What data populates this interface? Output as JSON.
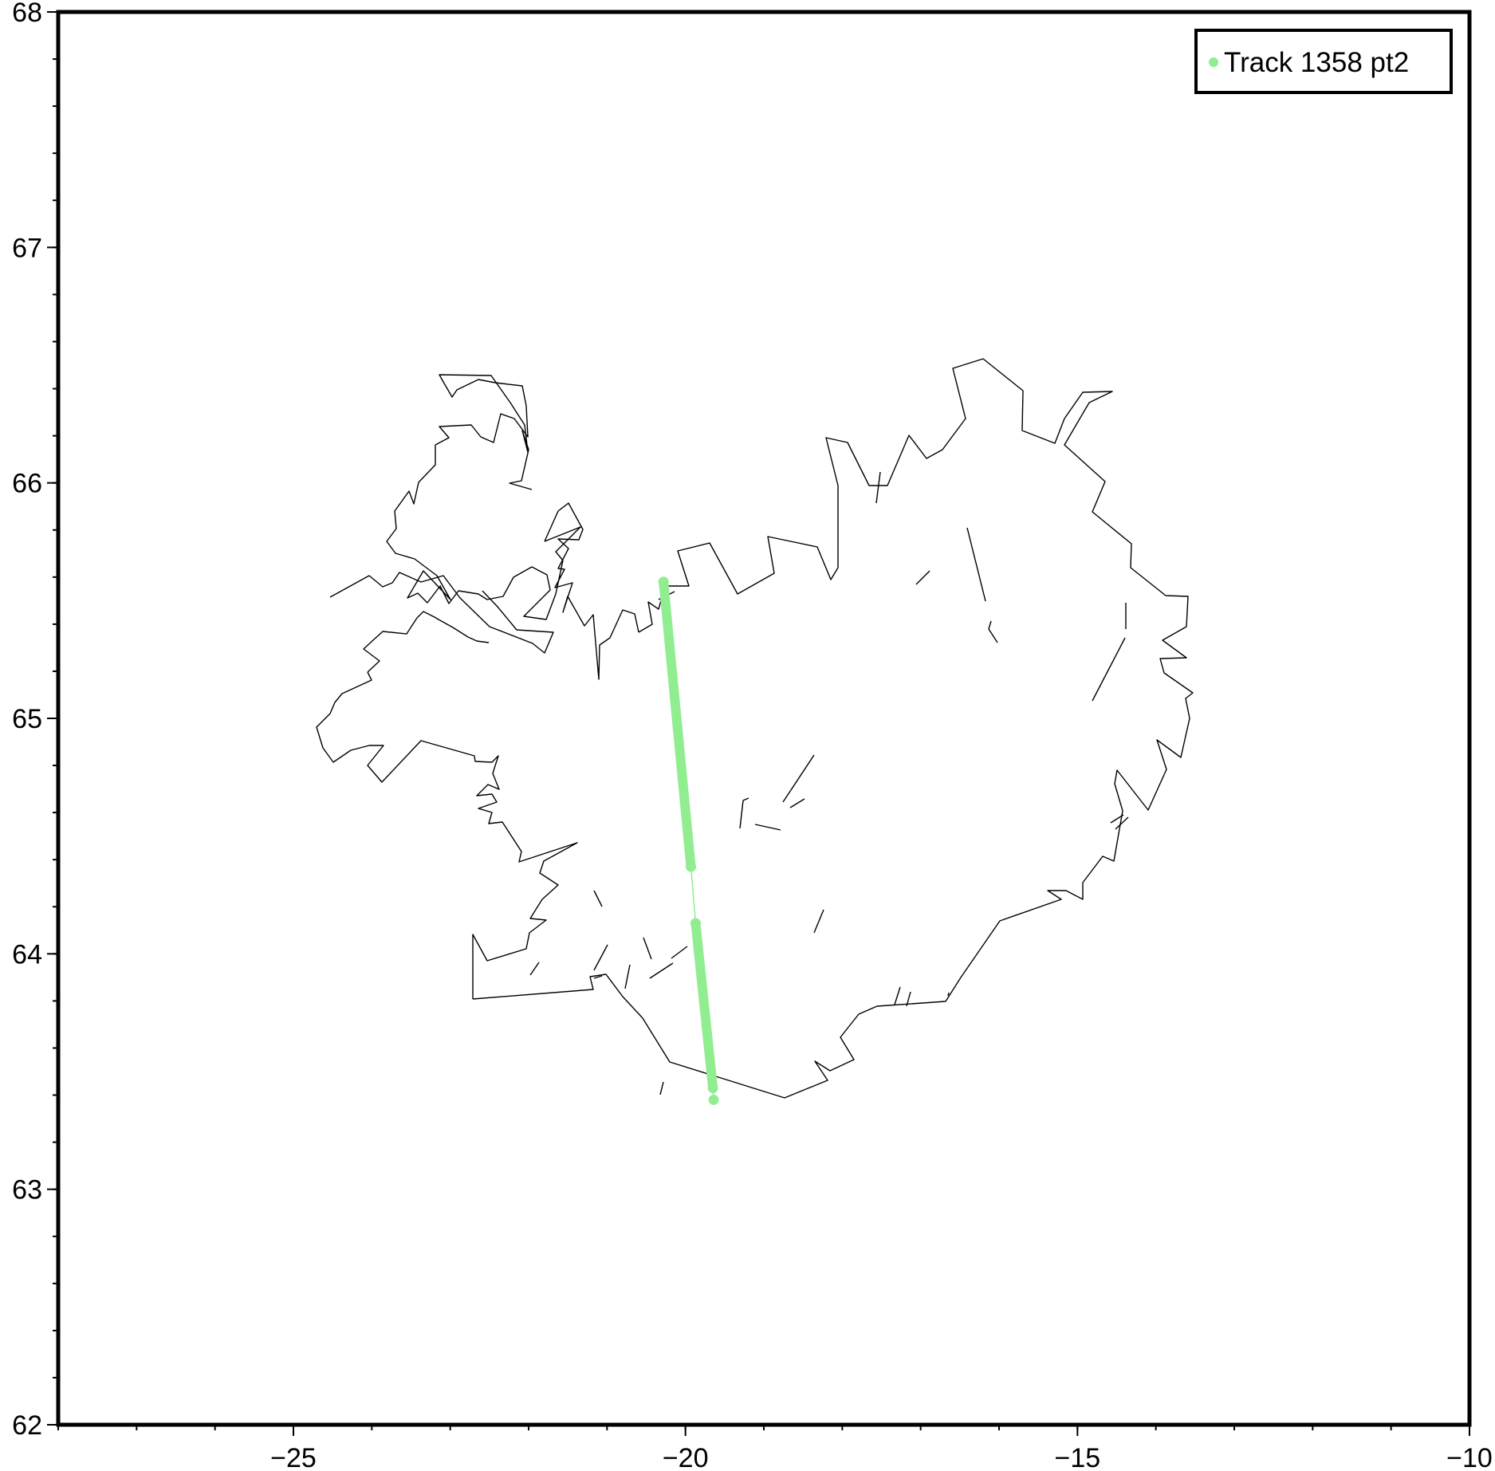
{
  "map": {
    "projection": "linear lon/lat",
    "x_axis": {
      "range": [
        -28,
        -10
      ],
      "major_ticks": [
        -25,
        -20,
        -15,
        -10
      ],
      "tick_labels": [
        "−25",
        "−20",
        "−15",
        "−10"
      ],
      "minor_step": 1
    },
    "y_axis": {
      "range": [
        62,
        68
      ],
      "major_ticks": [
        62,
        63,
        64,
        65,
        66,
        67,
        68
      ],
      "tick_labels": [
        "62",
        "63",
        "64",
        "65",
        "66",
        "67",
        "68"
      ],
      "minor_step": 0.2
    },
    "grid": false,
    "coastline_color": "#000000",
    "background_color": "#ffffff"
  },
  "legend": {
    "position": "top-right",
    "entries": [
      {
        "label": "Track 1358 pt2",
        "color": "#90ee90",
        "symbol": "circle"
      }
    ]
  },
  "chart_data": {
    "type": "scatter",
    "title": "",
    "xlabel": "",
    "ylabel": "",
    "xlim": [
      -28,
      -10
    ],
    "ylim": [
      62,
      68
    ],
    "grid": false,
    "legend_position": "top-right",
    "series": [
      {
        "name": "Track 1358 pt2",
        "color": "#90ee90",
        "segments": [
          {
            "start": [
              -20.28,
              65.58
            ],
            "end": [
              -19.93,
              64.37
            ]
          },
          {
            "start": [
              -19.87,
              64.13
            ],
            "end": [
              -19.65,
              63.43
            ]
          }
        ],
        "points": [
          [
            -20.28,
            65.58
          ],
          [
            -19.93,
            64.37
          ],
          [
            -19.87,
            64.13
          ],
          [
            -19.65,
            63.43
          ],
          [
            -19.64,
            63.38
          ]
        ]
      }
    ]
  }
}
